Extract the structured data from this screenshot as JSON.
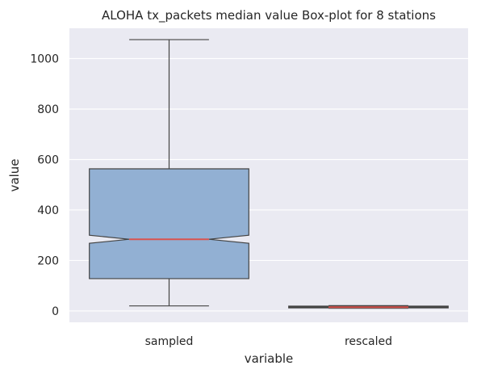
{
  "chart_data": {
    "type": "box",
    "title": "ALOHA tx_packets median value Box-plot for 8 stations",
    "xlabel": "variable",
    "ylabel": "value",
    "ylim": [
      -45,
      1120
    ],
    "yticks": [
      0,
      200,
      400,
      600,
      800,
      1000
    ],
    "grid": true,
    "notched": true,
    "categories": [
      "sampled",
      "rescaled"
    ],
    "boxes": [
      {
        "category": "sampled",
        "whisker_low": 20,
        "q1": 128,
        "notch_low": 268,
        "median": 284,
        "notch_high": 300,
        "q3": 563,
        "whisker_high": 1075,
        "color": "#92b0d3"
      },
      {
        "category": "rescaled",
        "whisker_low": 11,
        "q1": 12,
        "notch_low": 13,
        "median": 15,
        "notch_high": 17,
        "q3": 19,
        "whisker_high": 21,
        "color": "#d98b8b"
      }
    ],
    "colors": {
      "background": "#eaeaf2",
      "grid": "#ffffff",
      "box_edge": "#444444",
      "median_line": "#d9534f"
    }
  }
}
